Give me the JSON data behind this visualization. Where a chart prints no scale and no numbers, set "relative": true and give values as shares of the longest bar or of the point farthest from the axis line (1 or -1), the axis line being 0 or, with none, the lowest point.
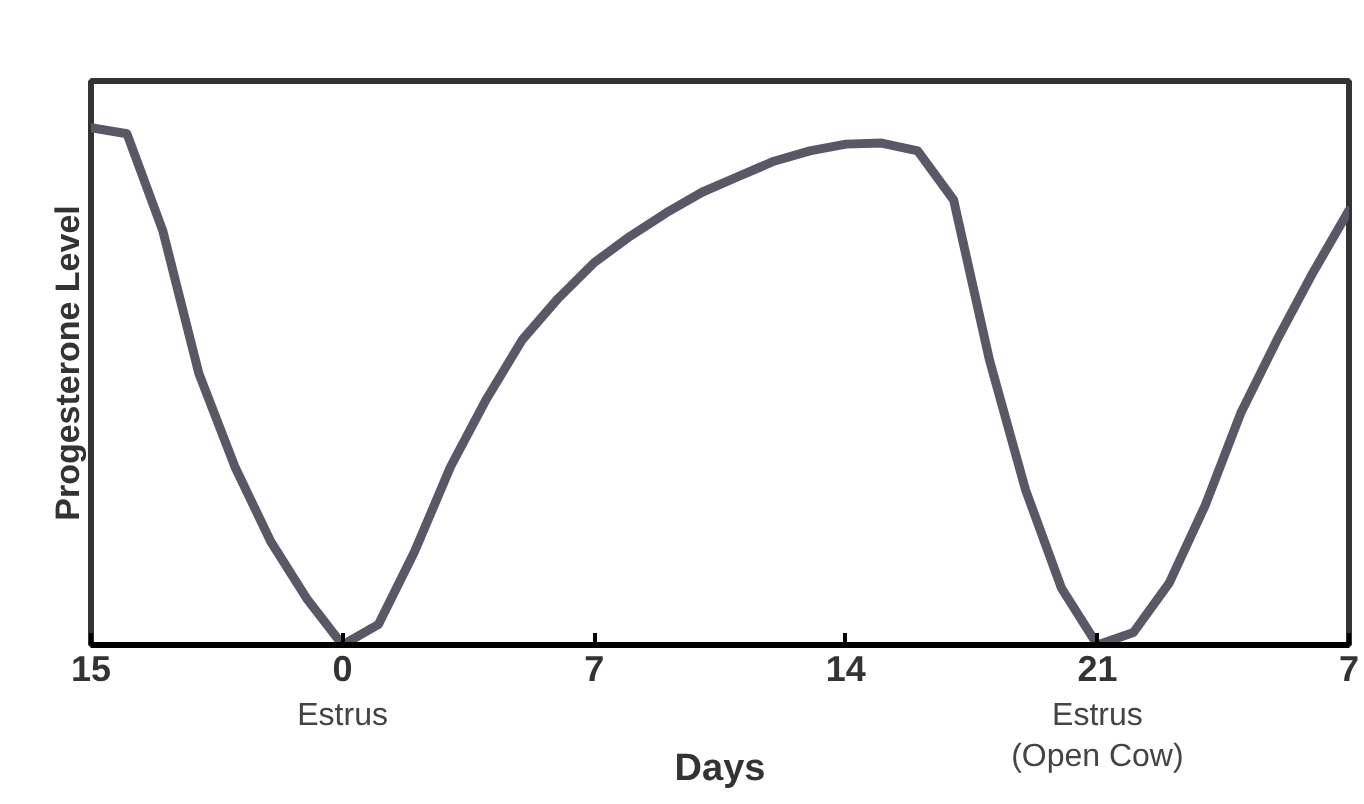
{
  "chart_data": {
    "type": "line",
    "relative": true,
    "xlabel": "Days",
    "ylabel": "Progesterone Level",
    "categories": [
      "15",
      null,
      null,
      null,
      null,
      null,
      null,
      "0",
      null,
      null,
      null,
      null,
      null,
      null,
      "7",
      null,
      null,
      null,
      null,
      null,
      null,
      "14",
      null,
      null,
      null,
      null,
      null,
      null,
      "21",
      null,
      null,
      null,
      null,
      null,
      null,
      "7"
    ],
    "annotations": [
      "Estrus",
      "Estrus\n(Open Cow)"
    ],
    "grid": false,
    "series": [
      {
        "color": "#5a5866",
        "values": [
          1.0,
          0.988,
          0.8,
          0.525,
          0.345,
          0.2,
          0.09,
          0,
          0.04,
          0.18,
          0.344,
          0.475,
          0.59,
          0.67,
          0.739,
          0.79,
          0.835,
          0.875,
          0.905,
          0.935,
          0.955,
          0.968,
          0.97,
          0.955,
          0.86,
          0.55,
          0.3,
          0.11,
          0,
          0.024,
          0.12,
          0.27,
          0.45,
          0.59,
          0.72,
          0.84
        ]
      }
    ]
  }
}
